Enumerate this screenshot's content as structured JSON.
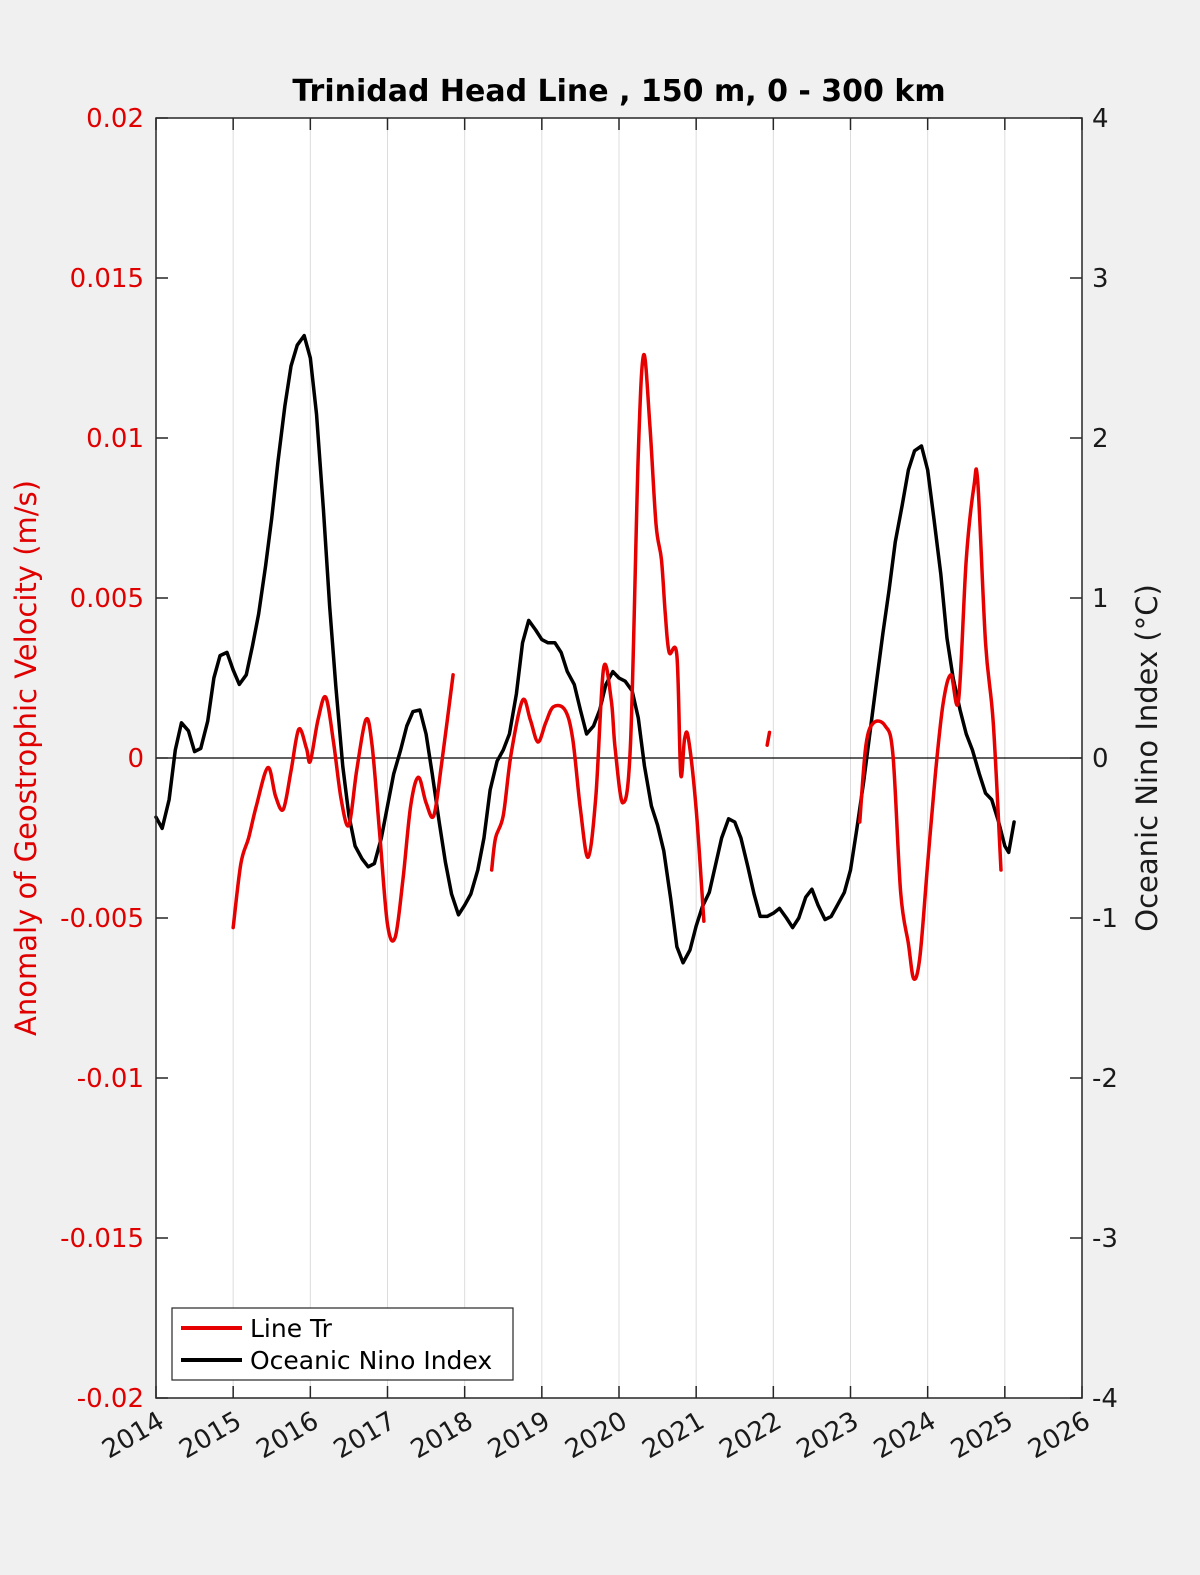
{
  "chart_data": {
    "type": "line",
    "title": "Trinidad Head Line , 150 m, 0 - 300 km",
    "ylabel_left": "Anomaly of Geostrophic Velocity (m/s)",
    "ylabel_right": "Oceanic Nino Index (°C)",
    "xlabel": "",
    "xlim": [
      2014,
      2026
    ],
    "ylim_left": [
      -0.02,
      0.02
    ],
    "ylim_right": [
      -4,
      4
    ],
    "x_ticks": [
      "2014",
      "2015",
      "2016",
      "2017",
      "2018",
      "2019",
      "2020",
      "2021",
      "2022",
      "2023",
      "2024",
      "2025",
      "2026"
    ],
    "y_left_ticks": [
      "-0.02",
      "-0.015",
      "-0.01",
      "-0.005",
      "0",
      "0.005",
      "0.01",
      "0.015",
      "0.02"
    ],
    "y_right_ticks": [
      "-4",
      "-3",
      "-2",
      "-1",
      "0",
      "1",
      "2",
      "3",
      "4"
    ],
    "grid": "vertical",
    "legend_position": "bottom-left",
    "colors": {
      "line_tr": "#e60000",
      "oni": "#000000",
      "left_axis": "#e00000"
    },
    "series": [
      {
        "name": "Line Tr",
        "axis": "left",
        "segments": [
          [
            [
              2015.0,
              -0.0053
            ],
            [
              2015.1,
              -0.0033
            ],
            [
              2015.2,
              -0.0025
            ],
            [
              2015.3,
              -0.0015
            ],
            [
              2015.45,
              -0.0003
            ],
            [
              2015.55,
              -0.0012
            ],
            [
              2015.65,
              -0.0016
            ],
            [
              2015.75,
              -0.0004
            ],
            [
              2015.85,
              0.0009
            ],
            [
              2015.95,
              0.0003
            ],
            [
              2016.0,
              -0.0001
            ],
            [
              2016.1,
              0.0012
            ],
            [
              2016.2,
              0.0019
            ],
            [
              2016.3,
              0.0005
            ],
            [
              2016.4,
              -0.0013
            ],
            [
              2016.5,
              -0.0021
            ],
            [
              2016.6,
              -0.0004
            ],
            [
              2016.72,
              0.0012
            ],
            [
              2016.8,
              0.0004
            ],
            [
              2016.9,
              -0.0024
            ],
            [
              2017.0,
              -0.0052
            ],
            [
              2017.1,
              -0.0056
            ],
            [
              2017.2,
              -0.0038
            ],
            [
              2017.3,
              -0.0015
            ],
            [
              2017.4,
              -0.0006
            ],
            [
              2017.5,
              -0.0014
            ],
            [
              2017.6,
              -0.0018
            ],
            [
              2017.7,
              -0.0002
            ],
            [
              2017.85,
              0.0026
            ]
          ],
          [
            [
              2018.35,
              -0.0035
            ],
            [
              2018.4,
              -0.0025
            ],
            [
              2018.5,
              -0.0018
            ],
            [
              2018.6,
              0.0001
            ],
            [
              2018.75,
              0.0018
            ],
            [
              2018.85,
              0.0012
            ],
            [
              2018.95,
              0.0005
            ],
            [
              2019.05,
              0.0011
            ],
            [
              2019.15,
              0.0016
            ],
            [
              2019.3,
              0.0015
            ],
            [
              2019.4,
              0.0006
            ],
            [
              2019.5,
              -0.0016
            ],
            [
              2019.6,
              -0.0031
            ],
            [
              2019.7,
              -0.0012
            ],
            [
              2019.8,
              0.0028
            ],
            [
              2019.9,
              0.0018
            ],
            [
              2019.95,
              0.0003
            ],
            [
              2020.05,
              -0.0014
            ],
            [
              2020.15,
              0.0005
            ],
            [
              2020.25,
              0.0095
            ],
            [
              2020.32,
              0.0126
            ],
            [
              2020.4,
              0.0104
            ],
            [
              2020.48,
              0.0073
            ],
            [
              2020.55,
              0.0062
            ],
            [
              2020.6,
              0.0045
            ],
            [
              2020.65,
              0.0033
            ],
            [
              2020.75,
              0.0032
            ],
            [
              2020.8,
              -0.0005
            ],
            [
              2020.85,
              0.0006
            ],
            [
              2020.9,
              0.0006
            ],
            [
              2021.0,
              -0.0016
            ],
            [
              2021.1,
              -0.0051
            ]
          ],
          [
            [
              2021.92,
              0.0004
            ],
            [
              2021.95,
              0.0008
            ]
          ],
          [
            [
              2023.12,
              -0.002
            ],
            [
              2023.2,
              0.0004
            ],
            [
              2023.3,
              0.0011
            ],
            [
              2023.45,
              0.001
            ],
            [
              2023.55,
              0.0001
            ],
            [
              2023.65,
              -0.0042
            ],
            [
              2023.75,
              -0.0058
            ],
            [
              2023.82,
              -0.0069
            ],
            [
              2023.9,
              -0.0062
            ],
            [
              2024.0,
              -0.0033
            ],
            [
              2024.1,
              -0.0005
            ],
            [
              2024.2,
              0.0017
            ],
            [
              2024.3,
              0.0026
            ],
            [
              2024.4,
              0.0018
            ],
            [
              2024.5,
              0.0062
            ],
            [
              2024.6,
              0.0085
            ],
            [
              2024.65,
              0.0086
            ],
            [
              2024.75,
              0.0036
            ],
            [
              2024.85,
              0.0011
            ],
            [
              2024.95,
              -0.0035
            ]
          ]
        ]
      },
      {
        "name": "Oceanic Nino Index",
        "axis": "right",
        "segments": [
          [
            [
              2014.0,
              -0.37
            ],
            [
              2014.08,
              -0.44
            ],
            [
              2014.17,
              -0.26
            ],
            [
              2014.25,
              0.05
            ],
            [
              2014.33,
              0.22
            ],
            [
              2014.42,
              0.17
            ],
            [
              2014.5,
              0.04
            ],
            [
              2014.58,
              0.06
            ],
            [
              2014.67,
              0.23
            ],
            [
              2014.75,
              0.5
            ],
            [
              2014.83,
              0.64
            ],
            [
              2014.92,
              0.66
            ],
            [
              2015.0,
              0.55
            ],
            [
              2015.08,
              0.46
            ],
            [
              2015.17,
              0.52
            ],
            [
              2015.25,
              0.7
            ],
            [
              2015.33,
              0.9
            ],
            [
              2015.42,
              1.2
            ],
            [
              2015.5,
              1.5
            ],
            [
              2015.58,
              1.85
            ],
            [
              2015.67,
              2.2
            ],
            [
              2015.75,
              2.45
            ],
            [
              2015.83,
              2.58
            ],
            [
              2015.92,
              2.64
            ],
            [
              2016.0,
              2.5
            ],
            [
              2016.08,
              2.15
            ],
            [
              2016.17,
              1.55
            ],
            [
              2016.25,
              0.95
            ],
            [
              2016.33,
              0.45
            ],
            [
              2016.42,
              -0.05
            ],
            [
              2016.5,
              -0.36
            ],
            [
              2016.58,
              -0.55
            ],
            [
              2016.67,
              -0.63
            ],
            [
              2016.75,
              -0.68
            ],
            [
              2016.83,
              -0.66
            ],
            [
              2016.92,
              -0.5
            ],
            [
              2017.0,
              -0.3
            ],
            [
              2017.08,
              -0.1
            ],
            [
              2017.17,
              0.05
            ],
            [
              2017.25,
              0.2
            ],
            [
              2017.33,
              0.29
            ],
            [
              2017.42,
              0.3
            ],
            [
              2017.5,
              0.15
            ],
            [
              2017.58,
              -0.1
            ],
            [
              2017.67,
              -0.4
            ],
            [
              2017.75,
              -0.65
            ],
            [
              2017.83,
              -0.85
            ],
            [
              2017.92,
              -0.98
            ],
            [
              2018.0,
              -0.92
            ],
            [
              2018.08,
              -0.85
            ],
            [
              2018.17,
              -0.7
            ],
            [
              2018.25,
              -0.5
            ],
            [
              2018.33,
              -0.2
            ],
            [
              2018.42,
              -0.02
            ],
            [
              2018.5,
              0.05
            ],
            [
              2018.58,
              0.15
            ],
            [
              2018.67,
              0.4
            ],
            [
              2018.75,
              0.72
            ],
            [
              2018.83,
              0.86
            ],
            [
              2018.92,
              0.8
            ],
            [
              2019.0,
              0.74
            ],
            [
              2019.08,
              0.72
            ],
            [
              2019.17,
              0.72
            ],
            [
              2019.25,
              0.66
            ],
            [
              2019.33,
              0.54
            ],
            [
              2019.42,
              0.46
            ],
            [
              2019.5,
              0.3
            ],
            [
              2019.58,
              0.15
            ],
            [
              2019.67,
              0.2
            ],
            [
              2019.75,
              0.3
            ],
            [
              2019.83,
              0.46
            ],
            [
              2019.92,
              0.54
            ],
            [
              2020.0,
              0.5
            ],
            [
              2020.08,
              0.48
            ],
            [
              2020.17,
              0.42
            ],
            [
              2020.25,
              0.25
            ],
            [
              2020.33,
              -0.05
            ],
            [
              2020.42,
              -0.3
            ],
            [
              2020.5,
              -0.42
            ],
            [
              2020.58,
              -0.58
            ],
            [
              2020.67,
              -0.88
            ],
            [
              2020.75,
              -1.18
            ],
            [
              2020.83,
              -1.28
            ],
            [
              2020.92,
              -1.2
            ],
            [
              2021.0,
              -1.05
            ],
            [
              2021.08,
              -0.93
            ],
            [
              2021.17,
              -0.84
            ],
            [
              2021.25,
              -0.67
            ],
            [
              2021.33,
              -0.5
            ],
            [
              2021.42,
              -0.38
            ],
            [
              2021.5,
              -0.4
            ],
            [
              2021.58,
              -0.5
            ],
            [
              2021.67,
              -0.68
            ],
            [
              2021.75,
              -0.85
            ],
            [
              2021.83,
              -0.99
            ],
            [
              2021.92,
              -0.99
            ],
            [
              2022.0,
              -0.97
            ],
            [
              2022.08,
              -0.94
            ],
            [
              2022.17,
              -1.0
            ],
            [
              2022.25,
              -1.06
            ],
            [
              2022.33,
              -1.0
            ],
            [
              2022.42,
              -0.87
            ],
            [
              2022.5,
              -0.82
            ],
            [
              2022.58,
              -0.92
            ],
            [
              2022.67,
              -1.01
            ],
            [
              2022.75,
              -0.99
            ],
            [
              2022.83,
              -0.92
            ],
            [
              2022.92,
              -0.84
            ],
            [
              2023.0,
              -0.7
            ],
            [
              2023.08,
              -0.45
            ],
            [
              2023.17,
              -0.15
            ],
            [
              2023.25,
              0.15
            ],
            [
              2023.33,
              0.45
            ],
            [
              2023.42,
              0.78
            ],
            [
              2023.5,
              1.05
            ],
            [
              2023.58,
              1.35
            ],
            [
              2023.67,
              1.58
            ],
            [
              2023.75,
              1.8
            ],
            [
              2023.83,
              1.92
            ],
            [
              2023.92,
              1.95
            ],
            [
              2024.0,
              1.8
            ],
            [
              2024.08,
              1.5
            ],
            [
              2024.17,
              1.15
            ],
            [
              2024.25,
              0.75
            ],
            [
              2024.33,
              0.5
            ],
            [
              2024.42,
              0.3
            ],
            [
              2024.5,
              0.15
            ],
            [
              2024.58,
              0.05
            ],
            [
              2024.67,
              -0.1
            ],
            [
              2024.75,
              -0.22
            ],
            [
              2024.83,
              -0.26
            ],
            [
              2024.92,
              -0.4
            ],
            [
              2025.0,
              -0.55
            ],
            [
              2025.05,
              -0.59
            ],
            [
              2025.12,
              -0.4
            ]
          ]
        ]
      }
    ]
  }
}
